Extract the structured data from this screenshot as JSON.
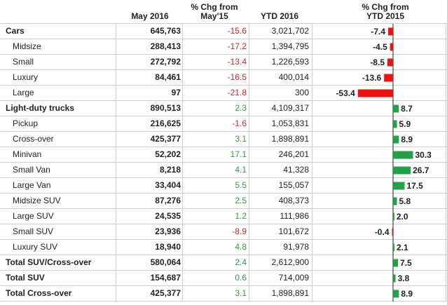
{
  "headers": {
    "may": "May 2016",
    "chg_may": "% Chg from\nMay'15",
    "ytd": "YTD 2016",
    "chg_ytd": "% Chg from\nYTD 2015"
  },
  "colors": {
    "negative": "#ee1111",
    "positive": "#22a04a",
    "neg_text": "#d22222",
    "pos_text": "#2e9b47"
  },
  "chart_data": {
    "type": "table",
    "columns": [
      "",
      "May 2016",
      "% Chg from May'15",
      "YTD 2016",
      "% Chg from YTD 2015"
    ],
    "rows": [
      {
        "label": "Cars",
        "bold": true,
        "sub": false,
        "may": "645,763",
        "chg_may": "-15.6",
        "ytd": "3,021,702",
        "chg_ytd": -7.4,
        "chg_ytd_text": "-7.4"
      },
      {
        "label": "Midsize",
        "bold": false,
        "sub": true,
        "may": "288,413",
        "chg_may": "-17.2",
        "ytd": "1,394,795",
        "chg_ytd": -4.5,
        "chg_ytd_text": "-4.5"
      },
      {
        "label": "Small",
        "bold": false,
        "sub": true,
        "may": "272,792",
        "chg_may": "-13.4",
        "ytd": "1,226,593",
        "chg_ytd": -8.5,
        "chg_ytd_text": "-8.5"
      },
      {
        "label": "Luxury",
        "bold": false,
        "sub": true,
        "may": "84,461",
        "chg_may": "-16.5",
        "ytd": "400,014",
        "chg_ytd": -13.6,
        "chg_ytd_text": "-13.6"
      },
      {
        "label": "Large",
        "bold": false,
        "sub": true,
        "may": "97",
        "chg_may": "-21.8",
        "ytd": "300",
        "chg_ytd": -53.4,
        "chg_ytd_text": "-53.4"
      },
      {
        "label": "Light-duty trucks",
        "bold": true,
        "sub": false,
        "may": "890,513",
        "chg_may": "2.3",
        "ytd": "4,109,317",
        "chg_ytd": 8.7,
        "chg_ytd_text": "8.7"
      },
      {
        "label": "Pickup",
        "bold": false,
        "sub": true,
        "may": "216,625",
        "chg_may": "-1.6",
        "ytd": "1,053,831",
        "chg_ytd": 5.9,
        "chg_ytd_text": "5.9"
      },
      {
        "label": "Cross-over",
        "bold": false,
        "sub": true,
        "may": "425,377",
        "chg_may": "3.1",
        "ytd": "1,898,891",
        "chg_ytd": 8.9,
        "chg_ytd_text": "8.9"
      },
      {
        "label": "Minivan",
        "bold": false,
        "sub": true,
        "may": "52,202",
        "chg_may": "17.1",
        "ytd": "246,201",
        "chg_ytd": 30.3,
        "chg_ytd_text": "30.3"
      },
      {
        "label": "Small Van",
        "bold": false,
        "sub": true,
        "may": "8,218",
        "chg_may": "4.1",
        "ytd": "41,328",
        "chg_ytd": 26.7,
        "chg_ytd_text": "26.7"
      },
      {
        "label": "Large Van",
        "bold": false,
        "sub": true,
        "may": "33,404",
        "chg_may": "5.5",
        "ytd": "155,057",
        "chg_ytd": 17.5,
        "chg_ytd_text": "17.5"
      },
      {
        "label": "Midsize SUV",
        "bold": false,
        "sub": true,
        "may": "87,276",
        "chg_may": "2.5",
        "ytd": "408,373",
        "chg_ytd": 5.8,
        "chg_ytd_text": "5.8"
      },
      {
        "label": "Large SUV",
        "bold": false,
        "sub": true,
        "may": "24,535",
        "chg_may": "1.2",
        "ytd": "111,986",
        "chg_ytd": 2.0,
        "chg_ytd_text": "2.0"
      },
      {
        "label": "Small SUV",
        "bold": false,
        "sub": true,
        "may": "23,936",
        "chg_may": "-8.9",
        "ytd": "101,672",
        "chg_ytd": -0.4,
        "chg_ytd_text": "-0.4"
      },
      {
        "label": "Luxury SUV",
        "bold": false,
        "sub": true,
        "may": "18,940",
        "chg_may": "4.8",
        "ytd": "91,978",
        "chg_ytd": 2.1,
        "chg_ytd_text": "2.1"
      },
      {
        "label": "Total SUV/Cross-over",
        "bold": true,
        "sub": false,
        "may": "580,064",
        "chg_may": "2.4",
        "ytd": "2,612,900",
        "chg_ytd": 7.5,
        "chg_ytd_text": "7.5"
      },
      {
        "label": "Total SUV",
        "bold": true,
        "sub": false,
        "may": "154,687",
        "chg_may": "0.6",
        "ytd": "714,009",
        "chg_ytd": 3.8,
        "chg_ytd_text": "3.8"
      },
      {
        "label": "Total Cross-over",
        "bold": true,
        "sub": false,
        "may": "425,377",
        "chg_may": "3.1",
        "ytd": "1,898,891",
        "chg_ytd": 8.9,
        "chg_ytd_text": "8.9"
      }
    ]
  }
}
